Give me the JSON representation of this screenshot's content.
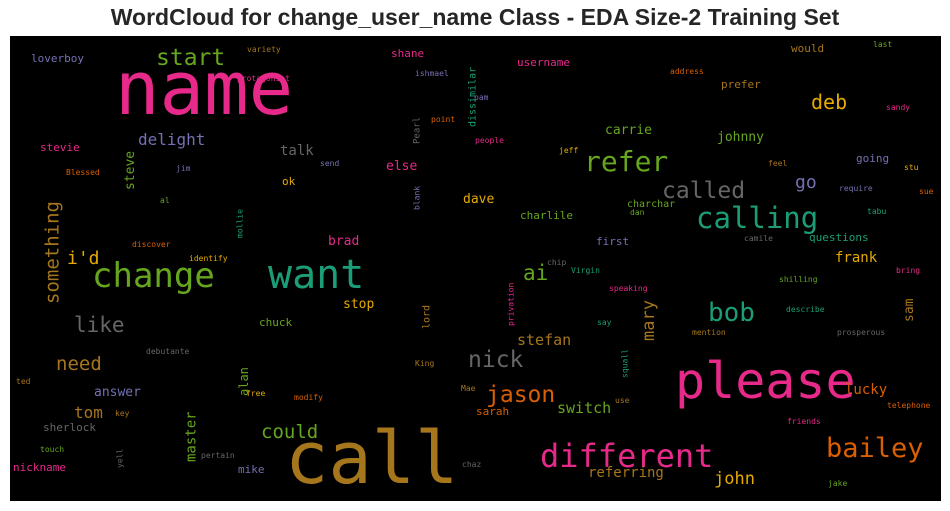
{
  "title": "WordCloud for change_user_name Class - EDA Size-2 Training Set",
  "background": "#000000",
  "colors": {
    "pink": "#e7298a",
    "green": "#1b9e77",
    "orange": "#d95f02",
    "purple": "#7570b3",
    "lime": "#66a61e",
    "gold": "#e6ab02",
    "brown": "#a6761d",
    "gray": "#666666"
  },
  "chart_data": {
    "type": "wordcloud",
    "words": [
      {
        "text": "name",
        "weight": 100,
        "color": "pink"
      },
      {
        "text": "call",
        "weight": 97,
        "color": "brown"
      },
      {
        "text": "please",
        "weight": 72,
        "color": "pink"
      },
      {
        "text": "want",
        "weight": 56,
        "color": "green"
      },
      {
        "text": "change",
        "weight": 49,
        "color": "lime"
      },
      {
        "text": "different",
        "weight": 46,
        "color": "pink"
      },
      {
        "text": "calling",
        "weight": 42,
        "color": "green"
      },
      {
        "text": "refer",
        "weight": 40,
        "color": "lime"
      },
      {
        "text": "bailey",
        "weight": 38,
        "color": "orange"
      },
      {
        "text": "bob",
        "weight": 37,
        "color": "green"
      },
      {
        "text": "nick",
        "weight": 33,
        "color": "gray"
      },
      {
        "text": "jason",
        "weight": 33,
        "color": "orange"
      },
      {
        "text": "called",
        "weight": 33,
        "color": "gray"
      },
      {
        "text": "start",
        "weight": 31,
        "color": "lime"
      },
      {
        "text": "ai",
        "weight": 30,
        "color": "lime"
      },
      {
        "text": "like",
        "weight": 29,
        "color": "gray"
      },
      {
        "text": "deb",
        "weight": 29,
        "color": "gold"
      },
      {
        "text": "something",
        "weight": 27,
        "color": "brown"
      },
      {
        "text": "need",
        "weight": 27,
        "color": "brown"
      },
      {
        "text": "could",
        "weight": 27,
        "color": "lime"
      },
      {
        "text": "i'd",
        "weight": 26,
        "color": "gold"
      },
      {
        "text": "go",
        "weight": 26,
        "color": "purple"
      },
      {
        "text": "mary",
        "weight": 25,
        "color": "brown"
      },
      {
        "text": "john",
        "weight": 24,
        "color": "gold"
      },
      {
        "text": "delight",
        "weight": 23,
        "color": "purple"
      },
      {
        "text": "tom",
        "weight": 22,
        "color": "brown"
      },
      {
        "text": "stefan",
        "weight": 20,
        "color": "brown"
      },
      {
        "text": "switch",
        "weight": 20,
        "color": "lime"
      },
      {
        "text": "master",
        "weight": 19,
        "color": "lime"
      },
      {
        "text": "referring",
        "weight": 19,
        "color": "brown"
      },
      {
        "text": "lucky",
        "weight": 18,
        "color": "orange"
      },
      {
        "text": "frank",
        "weight": 18,
        "color": "gold"
      },
      {
        "text": "steve",
        "weight": 18,
        "color": "lime"
      },
      {
        "text": "carrie",
        "weight": 18,
        "color": "lime"
      },
      {
        "text": "johnny",
        "weight": 18,
        "color": "lime"
      },
      {
        "text": "talk",
        "weight": 18,
        "color": "gray"
      },
      {
        "text": "answer",
        "weight": 17,
        "color": "purple"
      },
      {
        "text": "alan",
        "weight": 17,
        "color": "lime"
      },
      {
        "text": "sam",
        "weight": 16,
        "color": "brown"
      },
      {
        "text": "dave",
        "weight": 16,
        "color": "gold"
      },
      {
        "text": "brad",
        "weight": 16,
        "color": "pink"
      },
      {
        "text": "stop",
        "weight": 16,
        "color": "gold"
      },
      {
        "text": "else",
        "weight": 16,
        "color": "pink"
      },
      {
        "text": "mike",
        "weight": 15,
        "color": "purple"
      },
      {
        "text": "chuck",
        "weight": 14,
        "color": "lime"
      },
      {
        "text": "charlile",
        "weight": 14,
        "color": "lime"
      },
      {
        "text": "dissimilar",
        "weight": 14,
        "color": "green"
      },
      {
        "text": "questions",
        "weight": 14,
        "color": "green"
      },
      {
        "text": "first",
        "weight": 14,
        "color": "purple"
      },
      {
        "text": "sarah",
        "weight": 14,
        "color": "orange"
      },
      {
        "text": "going",
        "weight": 13,
        "color": "purple"
      },
      {
        "text": "username",
        "weight": 13,
        "color": "pink"
      },
      {
        "text": "prefer",
        "weight": 13,
        "color": "brown"
      },
      {
        "text": "would",
        "weight": 13,
        "color": "brown"
      },
      {
        "text": "sherlock",
        "weight": 13,
        "color": "gray"
      },
      {
        "text": "stevie",
        "weight": 13,
        "color": "pink"
      },
      {
        "text": "loverboy",
        "weight": 13,
        "color": "purple"
      },
      {
        "text": "shane",
        "weight": 13,
        "color": "pink"
      },
      {
        "text": "nickname",
        "weight": 13,
        "color": "pink"
      },
      {
        "text": "ok",
        "weight": 12,
        "color": "gold"
      },
      {
        "text": "lord",
        "weight": 12,
        "color": "brown"
      },
      {
        "text": "charchar",
        "weight": 12,
        "color": "lime"
      },
      {
        "text": "Pearl",
        "weight": 10,
        "color": "gray"
      },
      {
        "text": "privation",
        "weight": 10,
        "color": "pink"
      },
      {
        "text": "squall",
        "weight": 10,
        "color": "green"
      },
      {
        "text": "protagonist",
        "weight": 10,
        "color": "pink"
      },
      {
        "text": "variety",
        "weight": 10,
        "color": "brown"
      },
      {
        "text": "address",
        "weight": 10,
        "color": "orange"
      },
      {
        "text": "last",
        "weight": 10,
        "color": "lime"
      },
      {
        "text": "sandy",
        "weight": 10,
        "color": "pink"
      },
      {
        "text": "stu",
        "weight": 10,
        "color": "gold"
      },
      {
        "text": "sue",
        "weight": 10,
        "color": "orange"
      },
      {
        "text": "tabu",
        "weight": 10,
        "color": "green"
      },
      {
        "text": "require",
        "weight": 10,
        "color": "purple"
      },
      {
        "text": "feel",
        "weight": 10,
        "color": "brown"
      },
      {
        "text": "jeff",
        "weight": 10,
        "color": "gold"
      },
      {
        "text": "people",
        "weight": 10,
        "color": "pink"
      },
      {
        "text": "point",
        "weight": 10,
        "color": "orange"
      },
      {
        "text": "pam",
        "weight": 10,
        "color": "purple"
      },
      {
        "text": "ishmael",
        "weight": 10,
        "color": "purple"
      },
      {
        "text": "send",
        "weight": 10,
        "color": "purple"
      },
      {
        "text": "jim",
        "weight": 10,
        "color": "purple"
      },
      {
        "text": "Blessed",
        "weight": 10,
        "color": "orange"
      },
      {
        "text": "al",
        "weight": 10,
        "color": "lime"
      },
      {
        "text": "discover",
        "weight": 10,
        "color": "orange"
      },
      {
        "text": "identify",
        "weight": 10,
        "color": "gold"
      },
      {
        "text": "mollie",
        "weight": 10,
        "color": "green"
      },
      {
        "text": "blank",
        "weight": 10,
        "color": "purple"
      },
      {
        "text": "dan",
        "weight": 10,
        "color": "lime"
      },
      {
        "text": "camile",
        "weight": 10,
        "color": "gray"
      },
      {
        "text": "chip",
        "weight": 10,
        "color": "gray"
      },
      {
        "text": "Virgin",
        "weight": 10,
        "color": "green"
      },
      {
        "text": "speaking",
        "weight": 10,
        "color": "pink"
      },
      {
        "text": "shilling",
        "weight": 10,
        "color": "lime"
      },
      {
        "text": "bring",
        "weight": 10,
        "color": "pink"
      },
      {
        "text": "describe",
        "weight": 10,
        "color": "green"
      },
      {
        "text": "prosperous",
        "weight": 10,
        "color": "gray"
      },
      {
        "text": "mention",
        "weight": 10,
        "color": "brown"
      },
      {
        "text": "say",
        "weight": 10,
        "color": "green"
      },
      {
        "text": "King",
        "weight": 10,
        "color": "brown"
      },
      {
        "text": "Mae",
        "weight": 10,
        "color": "brown"
      },
      {
        "text": "debutante",
        "weight": 10,
        "color": "gray"
      },
      {
        "text": "free",
        "weight": 10,
        "color": "gold"
      },
      {
        "text": "modify",
        "weight": 10,
        "color": "orange"
      },
      {
        "text": "ted",
        "weight": 10,
        "color": "brown"
      },
      {
        "text": "key",
        "weight": 10,
        "color": "brown"
      },
      {
        "text": "use",
        "weight": 10,
        "color": "brown"
      },
      {
        "text": "telephone",
        "weight": 10,
        "color": "orange"
      },
      {
        "text": "friends",
        "weight": 10,
        "color": "pink"
      },
      {
        "text": "touch",
        "weight": 10,
        "color": "lime"
      },
      {
        "text": "yell",
        "weight": 10,
        "color": "gray"
      },
      {
        "text": "pertain",
        "weight": 10,
        "color": "gray"
      },
      {
        "text": "chaz",
        "weight": 10,
        "color": "gray"
      },
      {
        "text": "jake",
        "weight": 10,
        "color": "lime"
      }
    ]
  }
}
